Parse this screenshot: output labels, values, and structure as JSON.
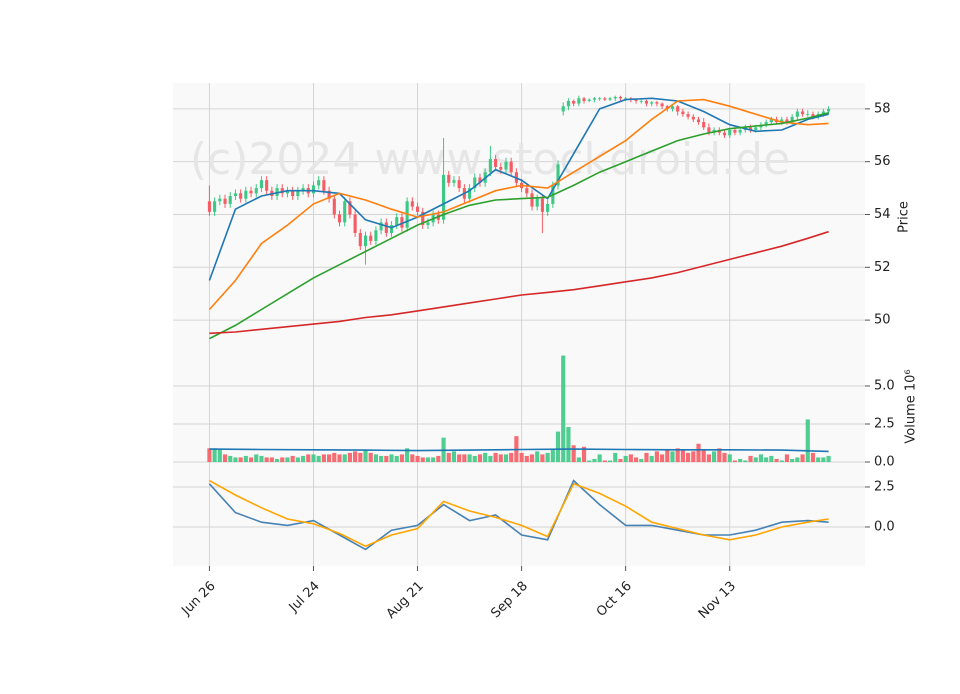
{
  "chart_data": [
    {
      "type": "candlestick",
      "watermark": "(c)2024 www.stockdroid.de",
      "y_label": "Price",
      "up_color": "#3dc985",
      "down_color": "#f65c63",
      "ylim": [
        48.83,
        58.98
      ],
      "yticks": [
        50,
        52,
        54,
        56,
        58
      ],
      "grid": true,
      "x": [
        0,
        1,
        2,
        3,
        4,
        5,
        6,
        7,
        8,
        9,
        10,
        11,
        12,
        13,
        14,
        15,
        16,
        17,
        18,
        19,
        20,
        21,
        22,
        23,
        24,
        25,
        26,
        27,
        28,
        29,
        30,
        31,
        32,
        33,
        34,
        35,
        36,
        37,
        38,
        39,
        40,
        41,
        42,
        43,
        44,
        45,
        46,
        47,
        48,
        49,
        50,
        51,
        52,
        53,
        54,
        55,
        56,
        57,
        58,
        59,
        60,
        61,
        62,
        63,
        64,
        65,
        66,
        67,
        68,
        69,
        70,
        71,
        72,
        73,
        74,
        75,
        76,
        77,
        78,
        79,
        80,
        81,
        82,
        83,
        84,
        85,
        86,
        87,
        88,
        89,
        90,
        91,
        92,
        93,
        94,
        95,
        96,
        97,
        98,
        99,
        100,
        101,
        102,
        103,
        104,
        105,
        106,
        107,
        108,
        109,
        110,
        111,
        112,
        113,
        114,
        115,
        116,
        117,
        118,
        119
      ],
      "open": [
        54.5,
        54.1,
        54.5,
        54.6,
        54.4,
        54.7,
        54.8,
        54.6,
        54.9,
        54.8,
        55.0,
        55.3,
        54.9,
        54.7,
        55.0,
        54.8,
        54.9,
        54.7,
        54.9,
        55.0,
        54.8,
        55.1,
        55.3,
        54.9,
        54.6,
        54.0,
        53.7,
        54.5,
        54.0,
        53.3,
        52.8,
        53.2,
        53.0,
        53.4,
        53.7,
        53.3,
        53.6,
        53.9,
        53.5,
        54.5,
        54.3,
        54.1,
        53.6,
        53.7,
        54.0,
        53.8,
        55.5,
        55.2,
        55.3,
        55.0,
        54.6,
        55.0,
        55.4,
        55.2,
        55.6,
        56.1,
        55.8,
        55.7,
        56.0,
        55.6,
        55.2,
        55.0,
        54.8,
        54.3,
        54.6,
        54.1,
        54.4,
        55.1,
        57.9,
        58.1,
        58.3,
        58.2,
        58.4,
        58.3,
        58.35,
        58.4,
        58.4,
        58.35,
        58.4,
        58.45,
        58.4,
        58.4,
        58.35,
        58.3,
        58.3,
        58.2,
        58.25,
        58.2,
        58.1,
        58.0,
        58.1,
        57.9,
        57.8,
        57.7,
        57.6,
        57.5,
        57.3,
        57.1,
        57.2,
        57.1,
        57.0,
        57.2,
        57.1,
        57.2,
        57.3,
        57.2,
        57.3,
        57.4,
        57.5,
        57.6,
        57.5,
        57.6,
        57.5,
        57.7,
        57.9,
        57.8,
        57.8,
        57.7,
        57.8,
        57.9
      ],
      "high": [
        55.1,
        54.65,
        54.75,
        54.75,
        54.85,
        54.95,
        54.95,
        55.05,
        55.05,
        55.15,
        55.45,
        55.45,
        55.05,
        55.15,
        55.15,
        55.05,
        55.05,
        55.05,
        55.15,
        55.15,
        55.25,
        55.45,
        55.45,
        55.05,
        54.75,
        54.15,
        54.65,
        54.65,
        54.15,
        53.45,
        53.35,
        53.35,
        53.55,
        53.85,
        53.85,
        53.75,
        54.05,
        54.05,
        54.65,
        54.65,
        54.45,
        54.25,
        53.85,
        54.15,
        54.15,
        56.9,
        55.65,
        55.45,
        55.45,
        55.15,
        55.15,
        55.55,
        55.55,
        55.75,
        56.6,
        56.25,
        55.95,
        56.15,
        56.15,
        55.75,
        55.35,
        55.15,
        54.95,
        54.75,
        54.75,
        54.55,
        55.25,
        56.05,
        58.25,
        58.4,
        58.35,
        58.5,
        58.45,
        58.4,
        58.45,
        58.45,
        58.45,
        58.45,
        58.5,
        58.5,
        58.45,
        58.45,
        58.4,
        58.35,
        58.35,
        58.3,
        58.3,
        58.25,
        58.15,
        58.15,
        58.15,
        58.0,
        57.9,
        57.8,
        57.7,
        57.65,
        57.45,
        57.3,
        57.3,
        57.2,
        57.3,
        57.3,
        57.3,
        57.4,
        57.4,
        57.4,
        57.5,
        57.6,
        57.7,
        57.7,
        57.7,
        57.7,
        57.8,
        58.0,
        58.0,
        57.95,
        57.9,
        57.9,
        58.0,
        58.1
      ],
      "low": [
        53.95,
        53.95,
        54.35,
        54.25,
        54.25,
        54.55,
        54.45,
        54.45,
        54.65,
        54.65,
        54.85,
        54.75,
        54.55,
        54.55,
        54.65,
        54.65,
        54.55,
        54.55,
        54.75,
        54.65,
        54.65,
        54.95,
        54.75,
        54.45,
        53.85,
        53.55,
        53.55,
        53.85,
        53.15,
        52.65,
        52.1,
        52.85,
        52.85,
        53.25,
        53.15,
        53.15,
        53.45,
        53.35,
        53.35,
        54.15,
        53.95,
        53.45,
        53.45,
        53.55,
        53.65,
        53.65,
        55.05,
        55.05,
        54.85,
        54.45,
        54.45,
        54.85,
        55.05,
        55.05,
        55.45,
        55.65,
        55.55,
        55.55,
        55.45,
        55.05,
        54.85,
        54.65,
        54.15,
        54.15,
        53.3,
        53.95,
        54.25,
        54.95,
        57.75,
        57.95,
        58.1,
        58.1,
        58.2,
        58.25,
        58.25,
        58.3,
        58.3,
        58.3,
        58.3,
        58.3,
        58.3,
        58.25,
        58.2,
        58.2,
        58.1,
        58.1,
        58.1,
        58.0,
        57.9,
        57.9,
        57.75,
        57.7,
        57.6,
        57.5,
        57.4,
        57.2,
        57.0,
        57.0,
        57.0,
        56.9,
        56.9,
        57.0,
        57.0,
        57.1,
        57.1,
        57.1,
        57.2,
        57.3,
        57.4,
        57.4,
        57.4,
        57.4,
        57.4,
        57.6,
        57.7,
        57.7,
        57.6,
        57.6,
        57.7,
        57.8
      ],
      "close": [
        54.1,
        54.5,
        54.6,
        54.4,
        54.7,
        54.8,
        54.6,
        54.9,
        54.8,
        55.0,
        55.3,
        54.9,
        54.7,
        55.0,
        54.8,
        54.9,
        54.7,
        54.9,
        55.0,
        54.8,
        55.1,
        55.3,
        54.9,
        54.6,
        54.0,
        53.7,
        54.5,
        54.0,
        53.3,
        52.8,
        53.2,
        53.0,
        53.4,
        53.7,
        53.3,
        53.6,
        53.9,
        53.5,
        54.5,
        54.3,
        54.1,
        53.6,
        53.7,
        54.0,
        53.8,
        55.5,
        55.2,
        55.3,
        55.0,
        54.6,
        55.0,
        55.4,
        55.2,
        55.6,
        56.1,
        55.8,
        55.7,
        56.0,
        55.6,
        55.2,
        55.0,
        54.8,
        54.3,
        54.6,
        54.1,
        54.4,
        55.1,
        55.9,
        58.1,
        58.3,
        58.2,
        58.4,
        58.3,
        58.35,
        58.4,
        58.4,
        58.35,
        58.4,
        58.45,
        58.4,
        58.4,
        58.35,
        58.3,
        58.3,
        58.2,
        58.25,
        58.2,
        58.1,
        58.0,
        58.1,
        57.9,
        57.8,
        57.7,
        57.6,
        57.5,
        57.3,
        57.1,
        57.2,
        57.1,
        57.0,
        57.2,
        57.1,
        57.2,
        57.3,
        57.2,
        57.3,
        57.4,
        57.5,
        57.6,
        57.5,
        57.6,
        57.5,
        57.7,
        57.9,
        57.8,
        57.8,
        57.7,
        57.8,
        57.9,
        58.0
      ],
      "series": [
        {
          "color": "#1f77b4",
          "x": [
            0,
            5,
            10,
            15,
            20,
            25,
            30,
            35,
            40,
            45,
            50,
            55,
            60,
            65,
            70,
            75,
            80,
            85,
            90,
            95,
            100,
            105,
            110,
            115,
            119
          ],
          "values": [
            51.5,
            54.2,
            54.7,
            54.9,
            54.9,
            54.8,
            53.8,
            53.5,
            53.9,
            54.4,
            54.9,
            55.7,
            55.3,
            54.6,
            56.3,
            58.0,
            58.35,
            58.4,
            58.3,
            57.9,
            57.4,
            57.15,
            57.2,
            57.6,
            57.8
          ]
        },
        {
          "color": "#ff7f0e",
          "x": [
            0,
            5,
            10,
            15,
            20,
            25,
            30,
            35,
            40,
            45,
            50,
            55,
            60,
            65,
            70,
            75,
            80,
            85,
            90,
            95,
            100,
            105,
            110,
            115,
            119
          ],
          "values": [
            50.4,
            51.5,
            52.9,
            53.6,
            54.4,
            54.8,
            54.55,
            54.2,
            53.9,
            54.1,
            54.5,
            54.9,
            55.1,
            55.0,
            55.6,
            56.2,
            56.8,
            57.6,
            58.3,
            58.35,
            58.1,
            57.8,
            57.5,
            57.4,
            57.45
          ]
        },
        {
          "color": "#2ca02c",
          "x": [
            0,
            5,
            10,
            15,
            20,
            25,
            30,
            35,
            40,
            45,
            50,
            55,
            60,
            65,
            70,
            75,
            80,
            85,
            90,
            95,
            100,
            105,
            110,
            115,
            119
          ],
          "values": [
            49.3,
            49.8,
            50.4,
            51.0,
            51.6,
            52.1,
            52.6,
            53.1,
            53.6,
            54.0,
            54.35,
            54.55,
            54.6,
            54.65,
            55.1,
            55.6,
            56.0,
            56.4,
            56.8,
            57.05,
            57.25,
            57.35,
            57.45,
            57.65,
            57.85
          ]
        },
        {
          "color": "#d62728",
          "x": [
            0,
            5,
            10,
            15,
            20,
            25,
            30,
            35,
            40,
            45,
            50,
            55,
            60,
            65,
            70,
            75,
            80,
            85,
            90,
            95,
            100,
            105,
            110,
            115,
            119
          ],
          "values": [
            49.5,
            49.55,
            49.65,
            49.75,
            49.85,
            49.95,
            50.1,
            50.2,
            50.35,
            50.5,
            50.65,
            50.8,
            50.95,
            51.05,
            51.15,
            51.3,
            51.45,
            51.6,
            51.8,
            52.05,
            52.3,
            52.55,
            52.8,
            53.1,
            53.35
          ]
        }
      ]
    },
    {
      "type": "bar",
      "y_label": "Volume  10⁶",
      "ylim": [
        0,
        7.3
      ],
      "yticks": [
        {
          "value": 0,
          "label": "0.0"
        },
        2.5,
        {
          "value": 5,
          "label": "5.0"
        }
      ],
      "grid": true,
      "values": [
        0.9,
        0.9,
        0.8,
        0.5,
        0.4,
        0.3,
        0.3,
        0.4,
        0.3,
        0.5,
        0.4,
        0.3,
        0.3,
        0.2,
        0.3,
        0.3,
        0.4,
        0.3,
        0.4,
        0.5,
        0.5,
        0.4,
        0.5,
        0.5,
        0.6,
        0.5,
        0.5,
        0.6,
        0.7,
        0.6,
        0.8,
        0.6,
        0.5,
        0.4,
        0.4,
        0.5,
        0.4,
        0.5,
        0.9,
        0.5,
        0.4,
        0.3,
        0.3,
        0.3,
        0.4,
        1.6,
        0.6,
        0.7,
        0.5,
        0.5,
        0.5,
        0.4,
        0.5,
        0.6,
        0.4,
        0.6,
        0.5,
        0.5,
        0.6,
        1.7,
        0.6,
        0.4,
        0.5,
        0.7,
        0.5,
        0.6,
        0.8,
        2.0,
        7.0,
        2.3,
        1.1,
        0.3,
        1.0,
        0.1,
        0.2,
        0.5,
        0.1,
        0.1,
        0.6,
        0.2,
        0.4,
        0.5,
        0.3,
        0.2,
        0.6,
        0.4,
        0.7,
        0.5,
        0.8,
        0.7,
        0.9,
        0.8,
        0.6,
        0.7,
        1.2,
        0.8,
        0.5,
        0.7,
        0.9,
        0.6,
        0.5,
        0.1,
        0.2,
        0.1,
        0.4,
        0.3,
        0.5,
        0.3,
        0.4,
        0.2,
        0.1,
        0.5,
        0.2,
        0.3,
        0.5,
        2.8,
        0.6,
        0.3,
        0.3,
        0.4
      ],
      "series": [
        {
          "color": "#1f77b4",
          "x": [
            0,
            10,
            20,
            30,
            40,
            50,
            60,
            70,
            80,
            90,
            100,
            110,
            119
          ],
          "values": [
            0.85,
            0.82,
            0.8,
            0.78,
            0.75,
            0.78,
            0.82,
            0.85,
            0.82,
            0.8,
            0.8,
            0.78,
            0.7
          ]
        }
      ]
    },
    {
      "type": "line",
      "ylim": [
        -2.44,
        4.06
      ],
      "yticks": [
        {
          "value": 0,
          "label": "0.0"
        },
        2.5
      ],
      "grid": true,
      "xlim": [
        -7,
        126
      ],
      "xticks": [
        {
          "value": 0,
          "label": "Jun 26"
        },
        {
          "value": 20,
          "label": "Jul 24"
        },
        {
          "value": 40,
          "label": "Aug 21"
        },
        {
          "value": 60,
          "label": "Sep 18"
        },
        {
          "value": 80,
          "label": "Oct 16"
        },
        {
          "value": 100,
          "label": "Nov 13"
        }
      ],
      "series": [
        {
          "color": "#4682b4",
          "x": [
            0,
            5,
            10,
            15,
            20,
            25,
            30,
            35,
            40,
            45,
            50,
            55,
            60,
            65,
            70,
            75,
            80,
            85,
            90,
            95,
            100,
            105,
            110,
            115,
            119
          ],
          "values": [
            2.7,
            0.9,
            0.3,
            0.1,
            0.4,
            -0.5,
            -1.4,
            -0.2,
            0.1,
            1.4,
            0.4,
            0.75,
            -0.5,
            -0.8,
            2.9,
            1.4,
            0.1,
            0.1,
            -0.2,
            -0.5,
            -0.5,
            -0.2,
            0.3,
            0.4,
            0.3
          ]
        },
        {
          "color": "#ffa500",
          "x": [
            0,
            5,
            10,
            15,
            20,
            25,
            30,
            35,
            40,
            45,
            50,
            55,
            60,
            65,
            70,
            75,
            80,
            85,
            90,
            95,
            100,
            105,
            110,
            115,
            119
          ],
          "values": [
            2.9,
            2.0,
            1.2,
            0.5,
            0.2,
            -0.4,
            -1.2,
            -0.5,
            -0.1,
            1.6,
            1.0,
            0.6,
            0.1,
            -0.6,
            2.7,
            2.1,
            1.3,
            0.3,
            -0.1,
            -0.5,
            -0.8,
            -0.5,
            0,
            0.3,
            0.5
          ]
        }
      ]
    }
  ]
}
